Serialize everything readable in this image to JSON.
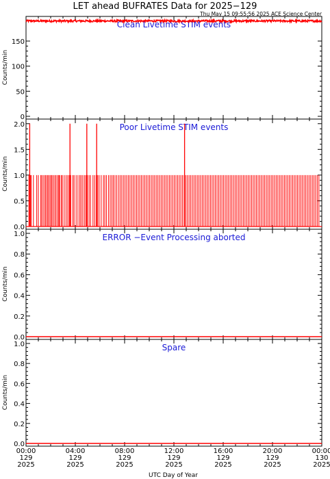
{
  "title": "LET ahead BUFRATES Data for 2025−129",
  "timestamp": "Thu May 15 09:55:56 2025 ACE Science Center",
  "xlabel": "UTC Day of Year",
  "colors": {
    "data": "#ff0000",
    "panel_title": "#1a1ad6",
    "axes": "#000000"
  },
  "chart_data": [
    {
      "type": "line",
      "title": "Clean Livetime STIM events",
      "ylabel": "Counts/min",
      "ylim": [
        0,
        195
      ],
      "yticks": [
        0,
        50,
        100,
        150
      ],
      "ytick_labels": [
        "0",
        "50",
        "100",
        "150"
      ],
      "xlim": [
        0,
        1440
      ],
      "series": [
        {
          "pattern": "steady-noisy",
          "baseline": 190,
          "jitter": 2.0
        }
      ]
    },
    {
      "type": "line",
      "title": "Poor Livetime STIM events",
      "ylabel": "Counts/min",
      "ylim": [
        0,
        2.05
      ],
      "yticks": [
        0,
        0.5,
        1.0,
        1.5,
        2.0
      ],
      "ytick_labels": [
        "0.0",
        "0.5",
        "1.0",
        "1.5",
        "2.0"
      ],
      "xlim": [
        0,
        1440
      ],
      "series": [
        {
          "pattern": "sparse-spikes",
          "baseline": 0,
          "spikes_value_1_minutes": [
            14,
            21,
            25,
            36,
            52,
            60,
            72,
            77,
            84,
            92,
            97,
            104,
            109,
            116,
            122,
            127,
            134,
            141,
            147,
            155,
            160,
            164,
            172,
            177,
            186,
            195,
            203,
            210,
            218,
            228,
            234,
            244,
            253,
            262,
            268,
            276,
            284,
            291,
            299,
            307,
            314,
            326,
            334,
            342,
            349,
            356,
            366,
            377,
            384,
            392,
            402,
            410,
            418,
            425,
            433,
            441,
            450,
            458,
            466,
            474,
            482,
            490,
            498,
            506,
            514,
            522,
            530,
            538,
            546,
            554,
            562,
            570,
            578,
            586,
            594,
            602,
            610,
            618,
            626,
            634,
            642,
            650,
            658,
            666,
            674,
            682,
            690,
            698,
            706,
            714,
            722,
            730,
            738,
            746,
            754,
            762,
            770,
            778,
            786,
            794,
            802,
            810,
            818,
            826,
            834,
            842,
            850,
            858,
            866,
            874,
            882,
            890,
            898,
            906,
            914,
            922,
            930,
            938,
            946,
            954,
            962,
            970,
            978,
            986,
            994,
            1002,
            1010,
            1018,
            1026,
            1034,
            1042,
            1050,
            1058,
            1066,
            1074,
            1082,
            1090,
            1098,
            1106,
            1114,
            1122,
            1130,
            1138,
            1146,
            1154,
            1162,
            1170,
            1178,
            1186,
            1194,
            1202,
            1210,
            1218,
            1226,
            1234,
            1242,
            1250,
            1258,
            1266,
            1274,
            1282,
            1290,
            1298,
            1306,
            1314,
            1322,
            1330,
            1338,
            1346,
            1354,
            1362,
            1370,
            1378,
            1386,
            1394,
            1402,
            1410,
            1418,
            1426
          ],
          "spikes_value_2_minutes": [
            18,
            214,
            296,
            344,
            772
          ]
        }
      ]
    },
    {
      "type": "line",
      "title": "ERROR −Event Processing aborted",
      "ylabel": "Counts/min",
      "ylim": [
        0,
        1.02
      ],
      "yticks": [
        0,
        0.2,
        0.4,
        0.6,
        0.8,
        1.0
      ],
      "ytick_labels": [
        "0.0",
        "0.2",
        "0.4",
        "0.6",
        "0.8",
        "1.0"
      ],
      "xlim": [
        0,
        1440
      ],
      "series": [
        {
          "pattern": "flat",
          "baseline": 0
        }
      ]
    },
    {
      "type": "line",
      "title": "Spare",
      "ylabel": "Counts/min",
      "ylim": [
        0,
        1.02
      ],
      "yticks": [
        0,
        0.2,
        0.4,
        0.6,
        0.8,
        1.0
      ],
      "ytick_labels": [
        "0.0",
        "0.2",
        "0.4",
        "0.6",
        "0.8",
        "1.0"
      ],
      "xlim": [
        0,
        1440
      ],
      "series": [
        {
          "pattern": "flat",
          "baseline": 0
        }
      ]
    }
  ],
  "x_ticks": [
    {
      "minute": 0,
      "label": [
        "00:00",
        "129",
        "2025"
      ]
    },
    {
      "minute": 240,
      "label": [
        "04:00",
        "129",
        "2025"
      ]
    },
    {
      "minute": 480,
      "label": [
        "08:00",
        "129",
        "2025"
      ]
    },
    {
      "minute": 720,
      "label": [
        "12:00",
        "129",
        "2025"
      ]
    },
    {
      "minute": 960,
      "label": [
        "16:00",
        "129",
        "2025"
      ]
    },
    {
      "minute": 1200,
      "label": [
        "20:00",
        "129",
        "2025"
      ]
    },
    {
      "minute": 1440,
      "label": [
        "00:00",
        "130",
        "2025"
      ]
    }
  ]
}
